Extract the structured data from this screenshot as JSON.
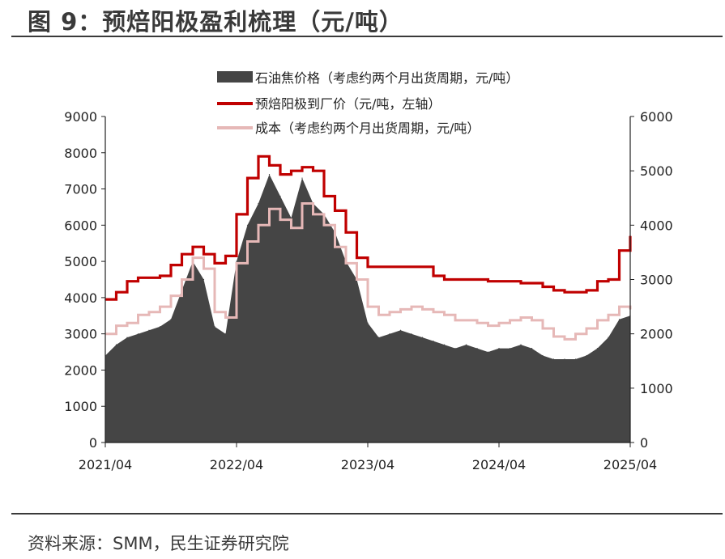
{
  "figure_title": "图 9：预焙阳极盈利梳理（元/吨）",
  "source": "资料来源：SMM，民生证券研究院",
  "chart_data": {
    "type": "area",
    "title": "",
    "xlabel": "",
    "ylabel": "",
    "x_ticks": [
      "2021/04",
      "2022/04",
      "2023/04",
      "2024/04",
      "2025/04"
    ],
    "x": [
      "2021/04",
      "2021/05",
      "2021/06",
      "2021/07",
      "2021/08",
      "2021/09",
      "2021/10",
      "2021/11",
      "2021/12",
      "2022/01",
      "2022/02",
      "2022/03",
      "2022/04",
      "2022/05",
      "2022/06",
      "2022/07",
      "2022/08",
      "2022/09",
      "2022/10",
      "2022/11",
      "2022/12",
      "2023/01",
      "2023/02",
      "2023/03",
      "2023/04",
      "2023/05",
      "2023/06",
      "2023/07",
      "2023/08",
      "2023/09",
      "2023/10",
      "2023/11",
      "2023/12",
      "2024/01",
      "2024/02",
      "2024/03",
      "2024/04",
      "2024/05",
      "2024/06",
      "2024/07",
      "2024/08",
      "2024/09",
      "2024/10",
      "2024/11",
      "2024/12",
      "2025/01",
      "2025/02",
      "2025/03",
      "2025/04"
    ],
    "y_left": {
      "ticks": [
        0,
        1000,
        2000,
        3000,
        4000,
        5000,
        6000,
        7000,
        8000,
        9000
      ],
      "range": [
        0,
        9000
      ]
    },
    "y_right": {
      "ticks": [
        0,
        1000,
        2000,
        3000,
        4000,
        5000,
        6000
      ],
      "range": [
        0,
        6000
      ]
    },
    "legend_position": "top",
    "grid": false,
    "series": [
      {
        "name": "石油焦价格（考虑约两个月出货周期，元/吨）",
        "kind": "area",
        "axis": "left",
        "color": "#454545",
        "values": [
          2400,
          2700,
          2900,
          3000,
          3100,
          3200,
          3400,
          4200,
          5000,
          4500,
          3200,
          3000,
          5000,
          6000,
          6600,
          7400,
          6800,
          6200,
          7300,
          6600,
          6300,
          5800,
          5000,
          4500,
          3300,
          2900,
          3000,
          3100,
          3000,
          2900,
          2800,
          2700,
          2600,
          2700,
          2600,
          2500,
          2600,
          2600,
          2700,
          2600,
          2400,
          2300,
          2300,
          2300,
          2400,
          2600,
          2900,
          3400,
          3500
        ]
      },
      {
        "name": "预焙阳极到厂价（元/吨，左轴）",
        "kind": "line",
        "axis": "left",
        "color": "#c00000",
        "values": [
          3950,
          4150,
          4450,
          4550,
          4550,
          4600,
          4900,
          5200,
          5400,
          5200,
          4950,
          5150,
          6300,
          7300,
          7900,
          7650,
          7400,
          7500,
          7600,
          7500,
          6800,
          6400,
          5800,
          5100,
          4850,
          4850,
          4850,
          4850,
          4850,
          4850,
          4600,
          4500,
          4500,
          4500,
          4500,
          4450,
          4450,
          4450,
          4400,
          4400,
          4300,
          4200,
          4150,
          4150,
          4200,
          4450,
          4500,
          5300,
          5700
        ]
      },
      {
        "name": "成本（考虑约两个月出货周期，元/吨）",
        "kind": "line",
        "axis": "right",
        "color": "#e6b8b7",
        "values": [
          2000,
          2150,
          2200,
          2350,
          2400,
          2500,
          2700,
          3000,
          3400,
          3200,
          2400,
          2300,
          3300,
          3700,
          4000,
          4300,
          4100,
          3950,
          4400,
          4200,
          4000,
          3600,
          3300,
          3000,
          2500,
          2350,
          2400,
          2450,
          2500,
          2450,
          2400,
          2350,
          2250,
          2250,
          2200,
          2150,
          2200,
          2250,
          2300,
          2250,
          2100,
          1950,
          1900,
          2000,
          2100,
          2250,
          2350,
          2500,
          2450
        ]
      }
    ]
  }
}
